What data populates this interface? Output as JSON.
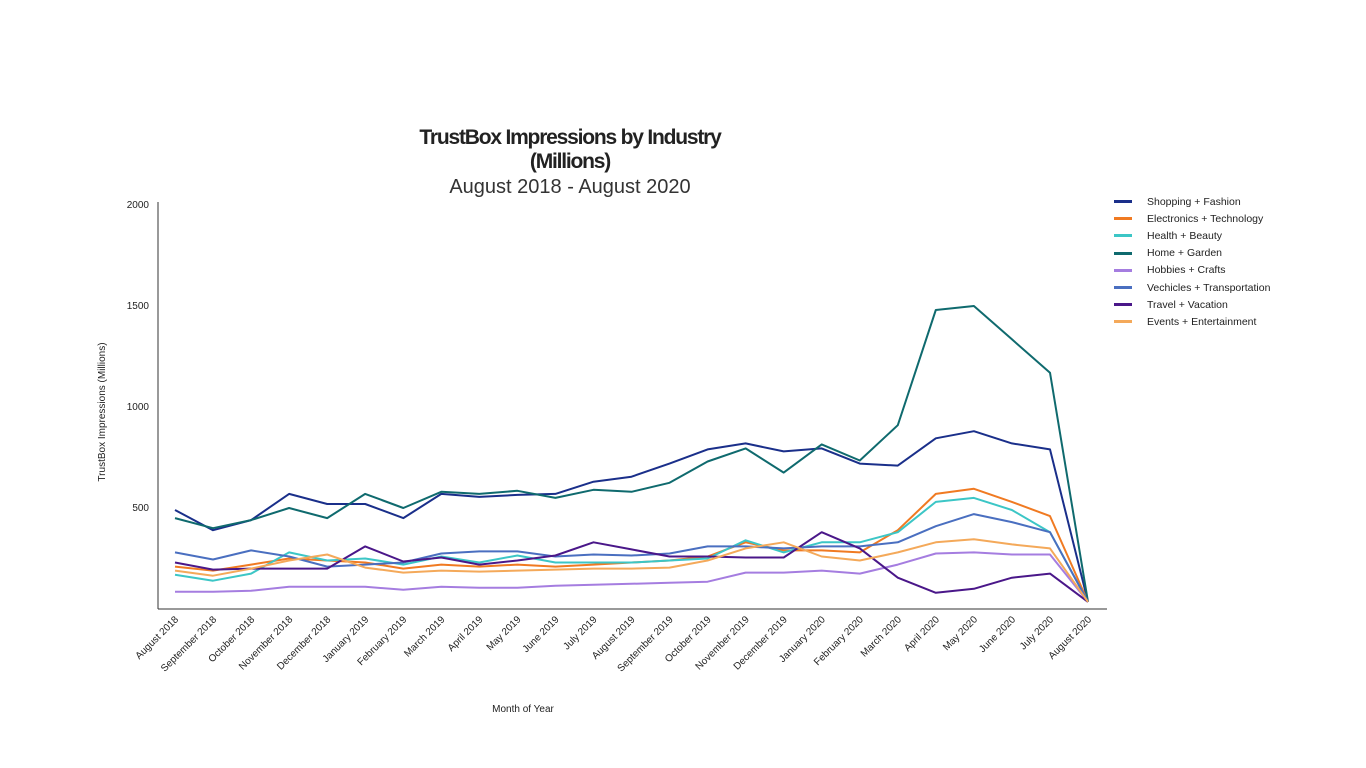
{
  "chart_data": {
    "type": "line",
    "title": "TrustBox Impressions by Industry (Millions)",
    "subtitle": "August 2018 - August 2020",
    "xlabel": "Month of Year",
    "ylabel": "TrustBox Impressions (Millions)",
    "ylim": [
      0,
      2000
    ],
    "yticks": [
      500,
      1000,
      1500,
      2000
    ],
    "grid": false,
    "legend_position": "top-right",
    "categories": [
      "August 2018",
      "September 2018",
      "October 2018",
      "November 2018",
      "December 2018",
      "January 2019",
      "February 2019",
      "March 2019",
      "April 2019",
      "May 2019",
      "June 2019",
      "July 2019",
      "August 2019",
      "September 2019",
      "October 2019",
      "November 2019",
      "December 2019",
      "January 2020",
      "February 2020",
      "March 2020",
      "April 2020",
      "May 2020",
      "June 2020",
      "July 2020",
      "August 2020"
    ],
    "series": [
      {
        "name": "Shopping + Fashion",
        "color": "#1a2f8a",
        "values": [
          490,
          390,
          440,
          570,
          520,
          520,
          450,
          570,
          555,
          565,
          570,
          630,
          655,
          720,
          790,
          820,
          780,
          795,
          720,
          710,
          845,
          880,
          820,
          790,
          35
        ]
      },
      {
        "name": "Electronics + Technology",
        "color": "#f07a22",
        "values": [
          210,
          190,
          220,
          250,
          240,
          230,
          200,
          220,
          210,
          220,
          210,
          220,
          230,
          240,
          260,
          330,
          290,
          290,
          280,
          390,
          570,
          595,
          530,
          460,
          35
        ]
      },
      {
        "name": "Health + Beauty",
        "color": "#3cc6c6",
        "values": [
          170,
          140,
          175,
          280,
          240,
          250,
          220,
          260,
          230,
          265,
          230,
          230,
          230,
          240,
          250,
          340,
          280,
          330,
          330,
          380,
          530,
          550,
          490,
          380,
          35
        ]
      },
      {
        "name": "Home + Garden",
        "color": "#0f6a6e",
        "values": [
          450,
          400,
          440,
          500,
          450,
          570,
          500,
          580,
          570,
          585,
          550,
          590,
          580,
          625,
          730,
          795,
          675,
          815,
          735,
          910,
          1480,
          1500,
          1335,
          1170,
          35
        ]
      },
      {
        "name": "Hobbies + Crafts",
        "color": "#a57de0",
        "values": [
          85,
          85,
          90,
          110,
          110,
          110,
          95,
          110,
          105,
          105,
          115,
          120,
          125,
          130,
          135,
          180,
          180,
          190,
          175,
          220,
          275,
          280,
          270,
          270,
          35
        ]
      },
      {
        "name": "Vechicles + Transportation",
        "color": "#4a6fc0",
        "values": [
          280,
          245,
          290,
          260,
          210,
          220,
          230,
          275,
          285,
          285,
          260,
          270,
          265,
          275,
          310,
          310,
          300,
          310,
          310,
          330,
          410,
          470,
          430,
          380,
          35
        ]
      },
      {
        "name": "Travel + Vacation",
        "color": "#4a1789",
        "values": [
          230,
          195,
          200,
          200,
          200,
          310,
          235,
          255,
          220,
          240,
          265,
          330,
          295,
          260,
          260,
          255,
          255,
          380,
          300,
          155,
          80,
          100,
          155,
          175,
          35
        ]
      },
      {
        "name": "Events + Entertainment",
        "color": "#f4a95a",
        "values": [
          190,
          165,
          200,
          240,
          270,
          205,
          180,
          190,
          185,
          190,
          195,
          200,
          200,
          205,
          240,
          300,
          330,
          260,
          240,
          280,
          330,
          345,
          320,
          300,
          35
        ]
      }
    ]
  }
}
